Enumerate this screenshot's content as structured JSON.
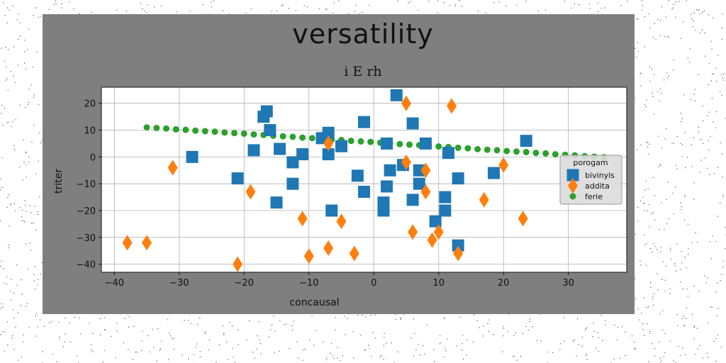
{
  "chart_data": {
    "type": "scatter",
    "title": "versatility",
    "subtitle": "i E rh",
    "xlabel": "concausal",
    "ylabel": "triter",
    "xlim": [
      -42,
      39
    ],
    "ylim": [
      -43,
      26
    ],
    "xticks": [
      -40,
      -30,
      -20,
      -10,
      0,
      10,
      20,
      30
    ],
    "yticks": [
      20,
      10,
      0,
      -10,
      -20,
      -30,
      -40
    ],
    "grid": true,
    "legend": {
      "title": "porogam",
      "position": "right"
    },
    "series": [
      {
        "name": "bivinyls",
        "marker": "square",
        "color": "#1f77b4",
        "points": [
          [
            -28,
            0
          ],
          [
            -21,
            -8
          ],
          [
            -18.5,
            2.5
          ],
          [
            -17,
            15
          ],
          [
            -16.5,
            17
          ],
          [
            -16,
            10
          ],
          [
            -15,
            -17
          ],
          [
            -14.5,
            3
          ],
          [
            -12.5,
            -2
          ],
          [
            -12.5,
            -10
          ],
          [
            -11,
            1
          ],
          [
            -8,
            7
          ],
          [
            -7,
            9
          ],
          [
            -7,
            1
          ],
          [
            -6.5,
            -20
          ],
          [
            -5,
            4
          ],
          [
            -2.5,
            -7
          ],
          [
            -1.5,
            13
          ],
          [
            -1.5,
            -13
          ],
          [
            1.5,
            -20
          ],
          [
            1.5,
            -17
          ],
          [
            2,
            5
          ],
          [
            2,
            -11
          ],
          [
            2.5,
            -5
          ],
          [
            3.5,
            23
          ],
          [
            4.5,
            -3
          ],
          [
            6,
            12.5
          ],
          [
            6,
            -16
          ],
          [
            7,
            -10
          ],
          [
            7,
            -5
          ],
          [
            8,
            5
          ],
          [
            9.5,
            -24
          ],
          [
            11,
            -15
          ],
          [
            11,
            -20
          ],
          [
            11.5,
            1.5
          ],
          [
            13,
            -33
          ],
          [
            13,
            -8
          ],
          [
            18.5,
            -6
          ],
          [
            23.5,
            6
          ]
        ]
      },
      {
        "name": "addita",
        "marker": "diamond",
        "color": "#ff7f0e",
        "points": [
          [
            -38,
            -32
          ],
          [
            -35,
            -32
          ],
          [
            -31,
            -4
          ],
          [
            -21,
            -40
          ],
          [
            -19,
            -13
          ],
          [
            -11,
            -23
          ],
          [
            -10,
            -37
          ],
          [
            -7,
            -34
          ],
          [
            -7,
            5
          ],
          [
            -5,
            -24
          ],
          [
            -3,
            -36
          ],
          [
            5,
            20
          ],
          [
            5,
            -2
          ],
          [
            6,
            -28
          ],
          [
            8,
            -5
          ],
          [
            8,
            -13
          ],
          [
            9,
            -31
          ],
          [
            10,
            -28
          ],
          [
            12,
            19
          ],
          [
            13,
            -36
          ],
          [
            17,
            -16
          ],
          [
            20,
            -3
          ],
          [
            23,
            -23
          ]
        ]
      },
      {
        "name": "ferie",
        "marker": "circle",
        "color": "#2ca02c",
        "points": [
          [
            -35,
            11
          ],
          [
            -33.5,
            10.8
          ],
          [
            -32,
            10.6
          ],
          [
            -30.5,
            10.3
          ],
          [
            -29,
            10.1
          ],
          [
            -27.5,
            9.8
          ],
          [
            -26,
            9.6
          ],
          [
            -24.5,
            9.4
          ],
          [
            -23,
            9.1
          ],
          [
            -21.5,
            8.9
          ],
          [
            -20,
            8.7
          ],
          [
            -18.5,
            8.4
          ],
          [
            -17,
            8.2
          ],
          [
            -15.5,
            7.9
          ],
          [
            -14,
            7.7
          ],
          [
            -12.5,
            7.5
          ],
          [
            -11,
            7.2
          ],
          [
            -9.5,
            7
          ],
          [
            -8,
            6.8
          ],
          [
            -6.5,
            6.5
          ],
          [
            -5,
            6.3
          ],
          [
            -3.5,
            6
          ],
          [
            -2,
            5.8
          ],
          [
            -0.5,
            5.6
          ],
          [
            1,
            5.3
          ],
          [
            2.5,
            5.1
          ],
          [
            4,
            4.8
          ],
          [
            5.5,
            4.6
          ],
          [
            7,
            4.4
          ],
          [
            8.5,
            4.1
          ],
          [
            10,
            3.9
          ],
          [
            11.5,
            3.7
          ],
          [
            13,
            3.4
          ],
          [
            14.5,
            3.2
          ],
          [
            16,
            2.9
          ],
          [
            17.5,
            2.7
          ],
          [
            19,
            2.5
          ],
          [
            20.5,
            2.2
          ],
          [
            22,
            2
          ],
          [
            23.5,
            1.8
          ],
          [
            25,
            1.5
          ],
          [
            26.5,
            1.3
          ],
          [
            28,
            1
          ],
          [
            29.5,
            0.8
          ],
          [
            31,
            0.6
          ],
          [
            32.5,
            0.3
          ],
          [
            34,
            0.1
          ],
          [
            35.5,
            -0.1
          ]
        ]
      }
    ]
  }
}
